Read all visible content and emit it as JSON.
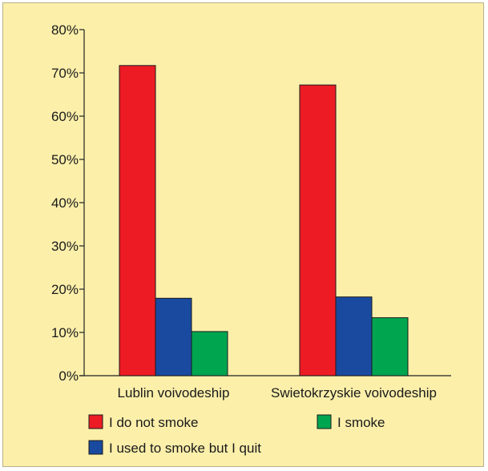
{
  "chart_data": {
    "type": "bar",
    "title": "",
    "xlabel": "",
    "ylabel": "",
    "ylim": [
      0,
      80
    ],
    "y_tick_values": [
      0,
      10,
      20,
      30,
      40,
      50,
      60,
      70,
      80
    ],
    "y_tick_labels": [
      "0%",
      "10%",
      "20%",
      "30%",
      "40%",
      "50%",
      "60%",
      "70%",
      "80%"
    ],
    "categories": [
      "Lublin voivodeship",
      "Swietokrzyskie voivodeship"
    ],
    "series": [
      {
        "name": "I do not smoke",
        "values": [
          71.7,
          67.2
        ],
        "color": "#ed1c24"
      },
      {
        "name": "I used to smoke but I quit",
        "values": [
          17.9,
          18.2
        ],
        "color": "#1a4aa0"
      },
      {
        "name": "I smoke",
        "values": [
          10.2,
          13.4
        ],
        "color": "#00a550"
      }
    ],
    "grid": false,
    "legend_position": "bottom",
    "background_color": "#fbefaa"
  }
}
